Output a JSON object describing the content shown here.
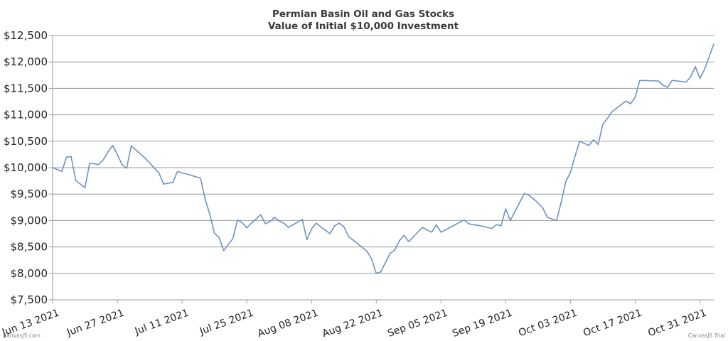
{
  "chart_data": {
    "type": "line",
    "title": "Permian Basin Oil and Gas Stocks",
    "subtitle": "Value of Initial $10,000 Investment",
    "xlabel": "",
    "ylabel": "",
    "y_ticks": [
      "$7,500",
      "$8,000",
      "$8,500",
      "$9,000",
      "$9,500",
      "$10,000",
      "$10,500",
      "$11,000",
      "$11,500",
      "$12,000",
      "$12,500"
    ],
    "y_tick_values": [
      7500,
      8000,
      8500,
      9000,
      9500,
      10000,
      10500,
      11000,
      11500,
      12000,
      12500
    ],
    "ylim": [
      7500,
      12500
    ],
    "x_ticks": [
      "Jun 13 2021",
      "Jun 27 2021",
      "Jul 11 2021",
      "Jul 25 2021",
      "Aug 08 2021",
      "Aug 22 2021",
      "Sep 05 2021",
      "Sep 19 2021",
      "Oct 03 2021",
      "Oct 17 2021",
      "Oct 31 2021"
    ],
    "x_tick_dates": [
      "2021-06-13",
      "2021-06-27",
      "2021-07-11",
      "2021-07-25",
      "2021-08-08",
      "2021-08-22",
      "2021-09-05",
      "2021-09-19",
      "2021-10-03",
      "2021-10-17",
      "2021-10-31"
    ],
    "grid": "horizontal",
    "line_color": "#6d92c4",
    "series": [
      {
        "x": [
          "2021-06-13",
          "2021-06-15",
          "2021-06-16",
          "2021-06-17",
          "2021-06-18",
          "2021-06-20",
          "2021-06-21",
          "2021-06-23",
          "2021-06-24",
          "2021-06-25",
          "2021-06-26",
          "2021-06-27",
          "2021-06-28",
          "2021-06-29",
          "2021-06-30",
          "2021-07-02",
          "2021-07-03",
          "2021-07-04",
          "2021-07-05",
          "2021-07-06",
          "2021-07-07",
          "2021-07-09",
          "2021-07-10",
          "2021-07-11",
          "2021-07-12",
          "2021-07-15",
          "2021-07-16",
          "2021-07-17",
          "2021-07-18",
          "2021-07-19",
          "2021-07-20",
          "2021-07-22",
          "2021-07-23",
          "2021-07-24",
          "2021-07-25",
          "2021-07-26",
          "2021-07-28",
          "2021-07-29",
          "2021-07-30",
          "2021-07-31",
          "2021-08-01",
          "2021-08-02",
          "2021-08-03",
          "2021-08-06",
          "2021-08-07",
          "2021-08-08",
          "2021-08-09",
          "2021-08-10",
          "2021-08-12",
          "2021-08-13",
          "2021-08-14",
          "2021-08-15",
          "2021-08-16",
          "2021-08-20",
          "2021-08-21",
          "2021-08-22",
          "2021-08-23",
          "2021-08-25",
          "2021-08-26",
          "2021-08-27",
          "2021-08-28",
          "2021-08-29",
          "2021-09-01",
          "2021-09-02",
          "2021-09-03",
          "2021-09-04",
          "2021-09-05",
          "2021-09-10",
          "2021-09-11",
          "2021-09-12",
          "2021-09-13",
          "2021-09-16",
          "2021-09-17",
          "2021-09-18",
          "2021-09-19",
          "2021-09-20",
          "2021-09-23",
          "2021-09-24",
          "2021-09-25",
          "2021-09-26",
          "2021-09-27",
          "2021-09-28",
          "2021-09-30",
          "2021-10-01",
          "2021-10-02",
          "2021-10-03",
          "2021-10-04",
          "2021-10-05",
          "2021-10-07",
          "2021-10-08",
          "2021-10-09",
          "2021-10-10",
          "2021-10-11",
          "2021-10-12",
          "2021-10-15",
          "2021-10-16",
          "2021-10-17",
          "2021-10-18",
          "2021-10-22",
          "2021-10-23",
          "2021-10-24",
          "2021-10-25",
          "2021-10-28",
          "2021-10-29",
          "2021-10-30",
          "2021-10-31",
          "2021-11-01",
          "2021-11-03"
        ],
        "y": [
          10000,
          9930,
          10200,
          10210,
          9760,
          9620,
          10080,
          10060,
          10150,
          10300,
          10420,
          10250,
          10060,
          9990,
          10410,
          10260,
          10180,
          10090,
          9990,
          9900,
          9690,
          9720,
          9930,
          9900,
          9880,
          9800,
          9400,
          9120,
          8760,
          8680,
          8430,
          8660,
          9010,
          8960,
          8860,
          8950,
          9110,
          8940,
          8980,
          9060,
          8990,
          8950,
          8870,
          9020,
          8640,
          8840,
          8950,
          8880,
          8750,
          8900,
          8950,
          8880,
          8700,
          8420,
          8270,
          8000,
          8030,
          8380,
          8440,
          8620,
          8720,
          8600,
          8870,
          8820,
          8780,
          8920,
          8780,
          9010,
          8940,
          8920,
          8910,
          8850,
          8920,
          8900,
          9220,
          9000,
          9510,
          9480,
          9410,
          9330,
          9240,
          9060,
          9000,
          9350,
          9740,
          9910,
          10220,
          10500,
          10420,
          10530,
          10440,
          10820,
          10930,
          11060,
          11260,
          11210,
          11330,
          11650,
          11640,
          11560,
          11520,
          11650,
          11620,
          11720,
          11910,
          11690,
          11860,
          12340
        ]
      }
    ],
    "credit_left": "CanvasJS.com",
    "credit_right": "CanvasJS Trial"
  }
}
